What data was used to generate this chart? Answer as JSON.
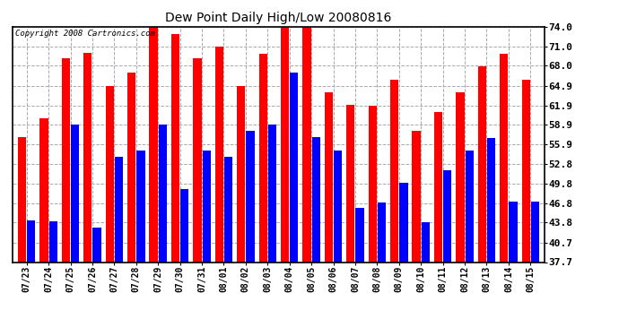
{
  "title": "Dew Point Daily High/Low 20080816",
  "copyright": "Copyright 2008 Cartronics.com",
  "dates": [
    "07/23",
    "07/24",
    "07/25",
    "07/26",
    "07/27",
    "07/28",
    "07/29",
    "07/30",
    "07/31",
    "08/01",
    "08/02",
    "08/03",
    "08/04",
    "08/05",
    "08/06",
    "08/07",
    "08/08",
    "08/09",
    "08/10",
    "08/11",
    "08/12",
    "08/13",
    "08/14",
    "08/15"
  ],
  "highs": [
    57.0,
    59.9,
    69.1,
    70.0,
    64.9,
    66.9,
    74.9,
    72.9,
    69.1,
    70.9,
    64.9,
    69.9,
    74.0,
    74.0,
    63.9,
    62.0,
    61.9,
    65.9,
    57.9,
    60.9,
    63.9,
    67.9,
    69.9,
    65.9
  ],
  "lows": [
    44.1,
    44.0,
    58.9,
    43.0,
    54.0,
    54.9,
    58.9,
    49.0,
    54.9,
    53.9,
    57.9,
    58.9,
    66.9,
    57.0,
    54.9,
    46.0,
    46.9,
    50.0,
    43.9,
    51.9,
    54.9,
    56.9,
    47.0,
    47.0
  ],
  "high_color": "#ff0000",
  "low_color": "#0000ff",
  "bg_color": "#ffffff",
  "grid_color": "#aaaaaa",
  "ylim_min": 37.7,
  "ylim_max": 74.0,
  "yticks": [
    37.7,
    40.7,
    43.8,
    46.8,
    49.8,
    52.8,
    55.9,
    58.9,
    61.9,
    64.9,
    68.0,
    71.0,
    74.0
  ]
}
